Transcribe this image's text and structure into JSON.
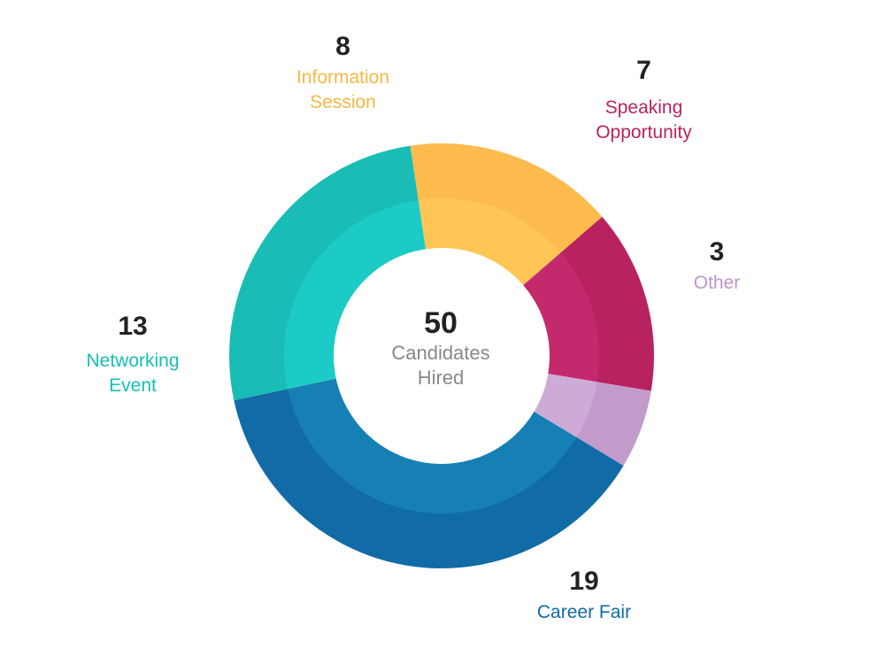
{
  "chart_data": {
    "type": "pie",
    "style": "donut",
    "center": {
      "total": "50",
      "label_line1": "Candidates",
      "label_line2": "Hired"
    },
    "slices": [
      {
        "key": "information-session",
        "value": 8,
        "label_lines": [
          "Information",
          "Session"
        ],
        "outer_color": "#FDBB4E",
        "inner_color": "#FFC655"
      },
      {
        "key": "speaking-opportunity",
        "value": 7,
        "label_lines": [
          "Speaking",
          "Opportunity"
        ],
        "outer_color": "#B8235F",
        "inner_color": "#C4296E"
      },
      {
        "key": "other",
        "value": 3,
        "label_lines": [
          "Other"
        ],
        "outer_color": "#C29BCB",
        "inner_color": "#CEABD6"
      },
      {
        "key": "career-fair",
        "value": 19,
        "label_lines": [
          "Career Fair"
        ],
        "outer_color": "#116BA6",
        "inner_color": "#1680B5"
      },
      {
        "key": "networking-event",
        "value": 13,
        "label_lines": [
          "Networking",
          "Event"
        ],
        "outer_color": "#19BDB5",
        "inner_color": "#1CCBC5"
      }
    ],
    "label_colors": {
      "information-session": "#F9B644",
      "speaking-opportunity": "#B8235F",
      "other": "#BE96CB",
      "career-fair": "#116BA6",
      "networking-event": "#15BDB5"
    },
    "start_angle_deg": -8.5,
    "legend": "none"
  }
}
